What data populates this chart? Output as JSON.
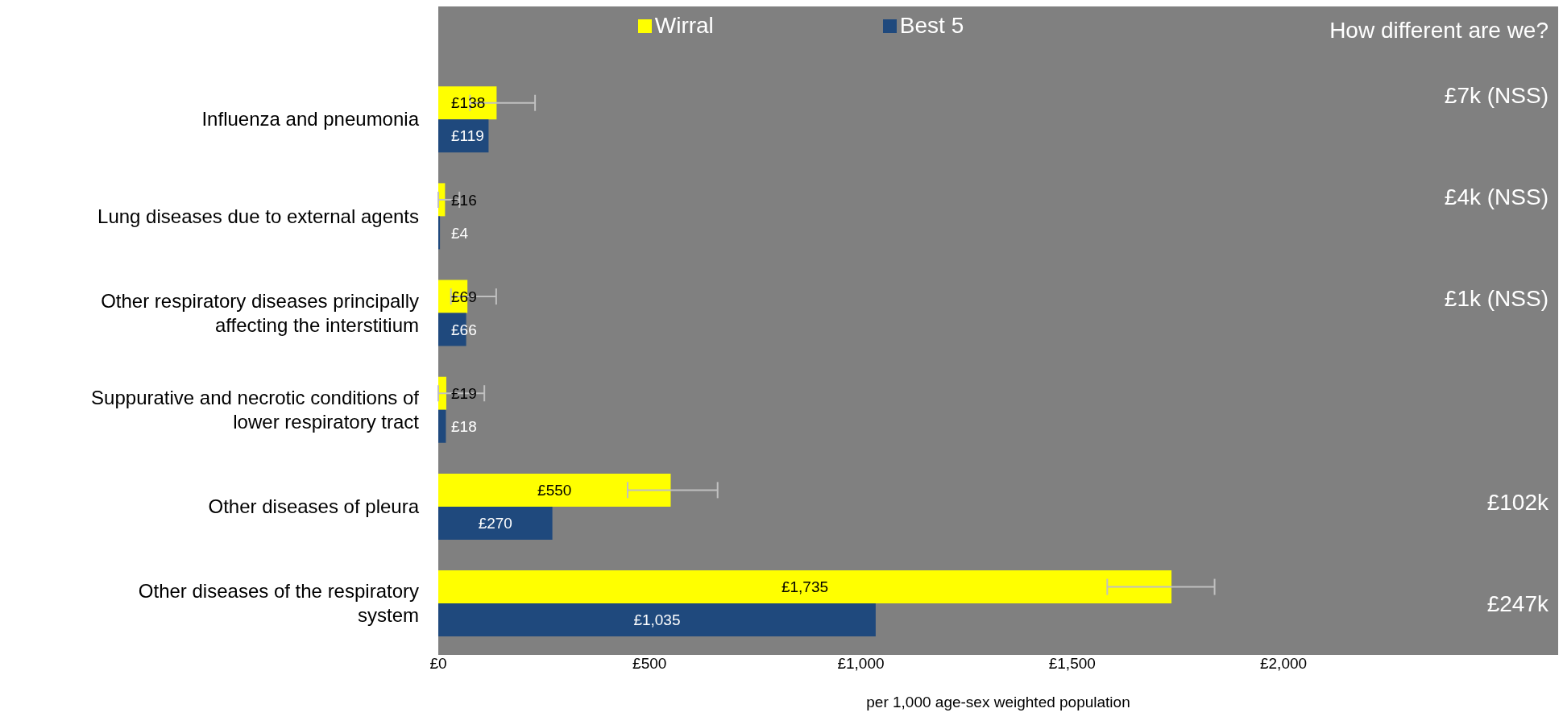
{
  "chart_data": {
    "type": "bar",
    "orientation": "horizontal",
    "xlabel": "per 1,000 age-sex weighted population",
    "categories": [
      "Influenza and pneumonia",
      "Lung diseases due to external agents",
      "Other respiratory diseases principally affecting the interstitium",
      "Suppurative and necrotic conditions of lower respiratory tract",
      "Other diseases of pleura",
      "Other diseases of the respiratory system"
    ],
    "series": [
      {
        "name": "Wirral",
        "color": "#ffff00",
        "values": [
          138,
          16,
          69,
          19,
          550,
          1735
        ],
        "value_labels": [
          "£138",
          "£16",
          "£69",
          "£19",
          "£550",
          "£1,735"
        ],
        "errors": [
          [
            75,
            229
          ],
          [
            0,
            50
          ],
          [
            30,
            137
          ],
          [
            0,
            109
          ],
          [
            448,
            661
          ],
          [
            1583,
            1837
          ]
        ]
      },
      {
        "name": "Best 5",
        "color": "#1f497d",
        "values": [
          119,
          4,
          66,
          18,
          270,
          1035
        ],
        "value_labels": [
          "£119",
          "£4",
          "£66",
          "£18",
          "£270",
          "£1,035"
        ]
      }
    ],
    "xlim": [
      0,
      2650
    ],
    "xticks": [
      {
        "value": 0,
        "label": "£0"
      },
      {
        "value": 500,
        "label": "£500"
      },
      {
        "value": 1000,
        "label": "£1,000"
      },
      {
        "value": 1500,
        "label": "£1,500"
      },
      {
        "value": 2000,
        "label": "£2,000"
      }
    ],
    "legend": "top",
    "grid": false,
    "annotations": [
      "How different are we?",
      "£7k (NSS)",
      "£4k (NSS)",
      "£1k (NSS)",
      "£102k",
      "£247k"
    ]
  }
}
